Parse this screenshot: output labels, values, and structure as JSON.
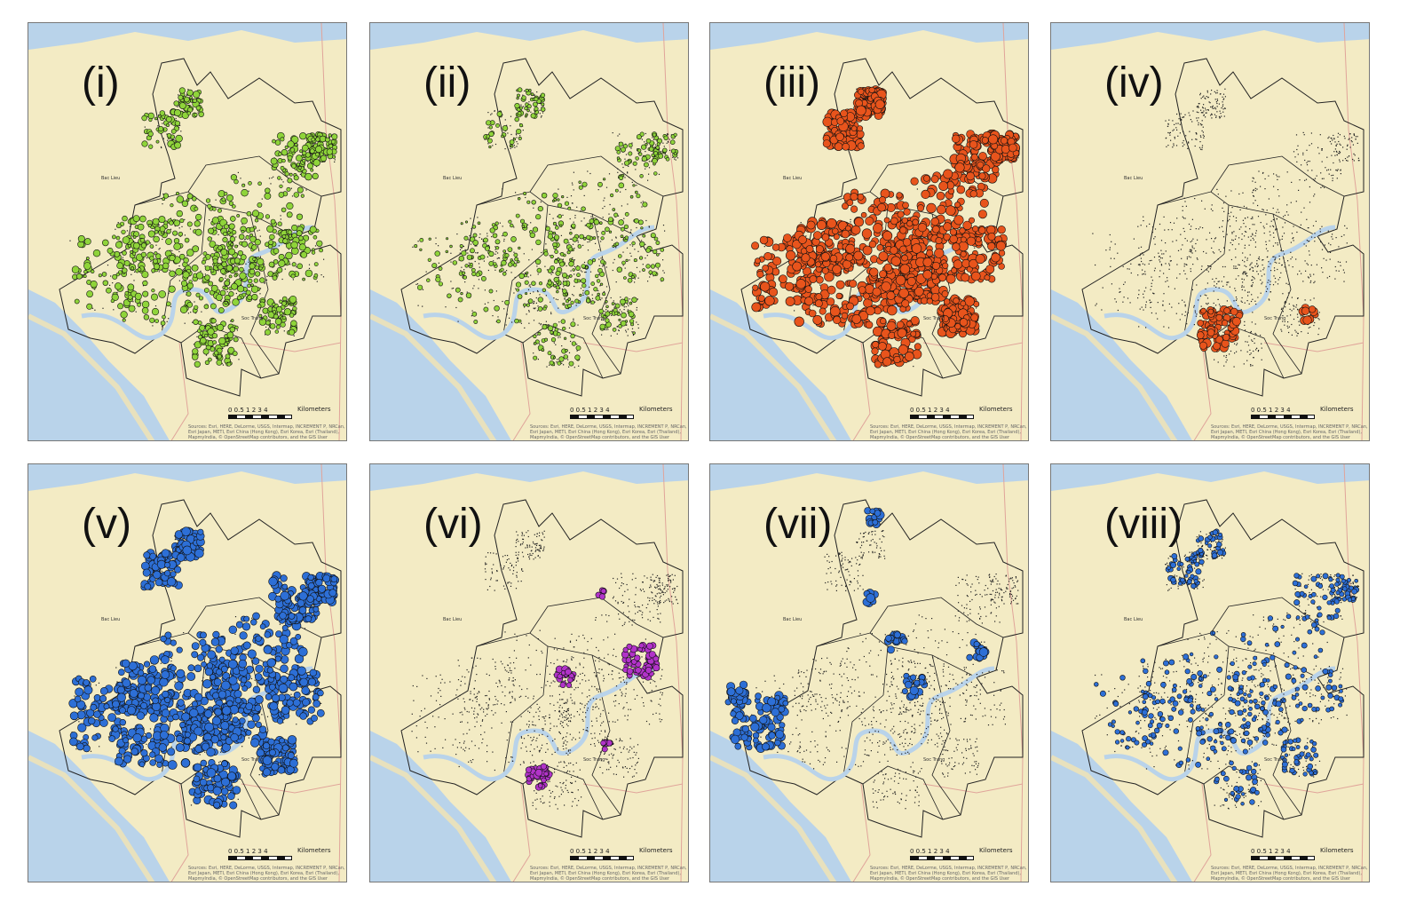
{
  "panels": [
    {
      "label": "(i)",
      "points_color": "#8fd43a",
      "style": "green-dense"
    },
    {
      "label": "(ii)",
      "points_color": "#8fd43a",
      "style": "green-sparse"
    },
    {
      "label": "(iii)",
      "points_color": "#e8541c",
      "style": "orange-dense"
    },
    {
      "label": "(iv)",
      "points_color": "#e8541c",
      "style": "orange-local"
    },
    {
      "label": "(v)",
      "points_color": "#2d6fd6",
      "style": "blue-dense"
    },
    {
      "label": "(vi)",
      "points_color": "#b233c9",
      "style": "purple-local"
    },
    {
      "label": "(vii)",
      "points_color": "#2d6fd6",
      "style": "blue-clusters"
    },
    {
      "label": "(viii)",
      "points_color": "#2d6fd6",
      "style": "blue-sparse"
    }
  ],
  "map": {
    "land_color": "#f3ebc4",
    "water_color": "#b9d3ea",
    "river_color": "#b9d3ea",
    "road_color": "#e0a49a",
    "boundary_color": "#222222",
    "point_outline_color": "#111111"
  },
  "scale": {
    "ticks": "0 0.5 1   2   3   4",
    "unit": "Kilometers"
  },
  "credits": "Sources: Esri, HERE, DeLorme, USGS, Intermap, INCREMENT P, NRCan, Esri Japan, METI, Esri China (Hong Kong), Esri Korea, Esri (Thailand), MapmyIndia, © OpenStreetMap contributors, and the GIS User Community",
  "towns": {
    "north": "Bac Lieu",
    "south": "Soc Trang"
  }
}
